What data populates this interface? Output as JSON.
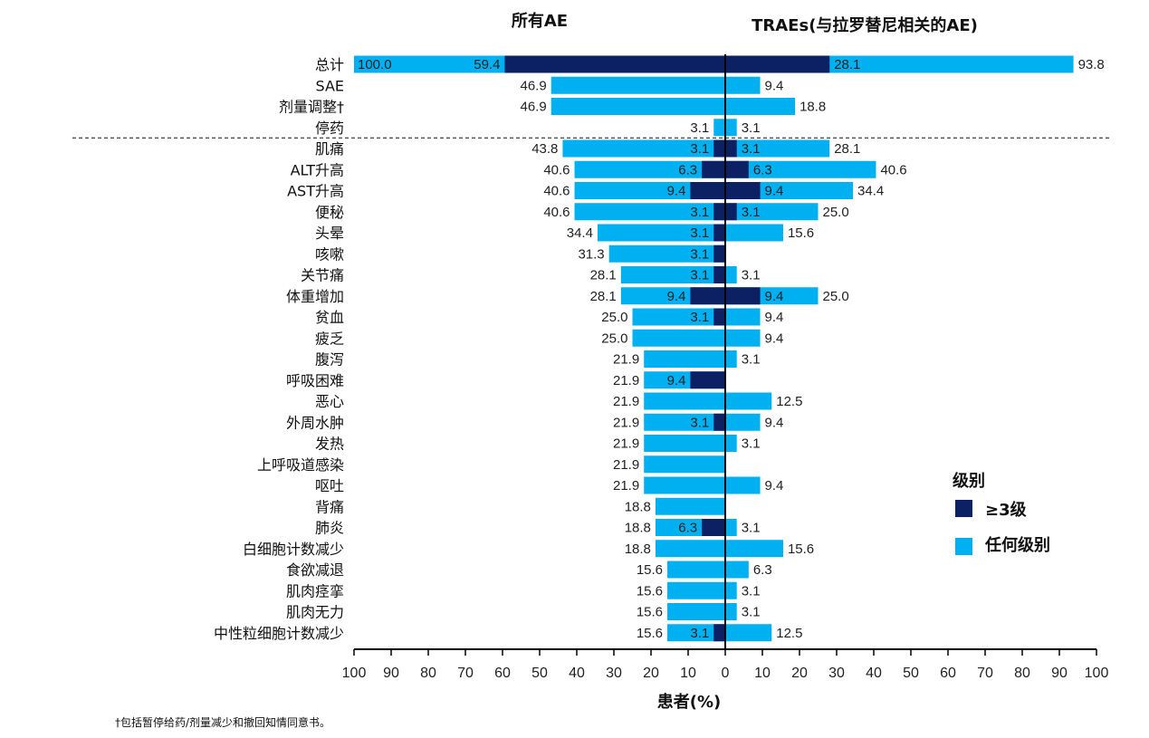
{
  "colors": {
    "any_grade": "#00B0F0",
    "grade3plus": "#0B2163",
    "axis": "#000000",
    "divider": "#555555"
  },
  "header_left": "所有AE",
  "header_right": "TRAEs(与拉罗替尼相关的AE)",
  "xlabel": "患者(%)",
  "footnote": "†包括暂停给药/剂量减少和撤回知情同意书。",
  "legend": {
    "title": "级别",
    "items": [
      {
        "label": "≥3级",
        "key": "grade3plus"
      },
      {
        "label": "任何级别",
        "key": "any_grade"
      }
    ]
  },
  "chart_data": {
    "type": "bar",
    "orientation": "horizontal-butterfly",
    "xlim": [
      -100,
      100
    ],
    "tick_labels": [
      "100",
      "90",
      "80",
      "70",
      "60",
      "50",
      "40",
      "30",
      "20",
      "10",
      "0",
      "10",
      "20",
      "30",
      "40",
      "50",
      "60",
      "70",
      "80",
      "90",
      "100"
    ],
    "divider_after_index": 3,
    "categories": [
      "总计",
      "SAE",
      "剂量调整†",
      "停药",
      "肌痛",
      "ALT升高",
      "AST升高",
      "便秘",
      "头晕",
      "咳嗽",
      "关节痛",
      "体重增加",
      "贫血",
      "疲乏",
      "腹泻",
      "呼吸困难",
      "恶心",
      "外周水肿",
      "发热",
      "上呼吸道感染",
      "呕吐",
      "背痛",
      "肺炎",
      "白细胞计数减少",
      "食欲减退",
      "肌肉痉挛",
      "肌肉无力",
      "中性粒细胞计数减少"
    ],
    "series": [
      {
        "name": "所有AE 任何级别",
        "side": "left",
        "key": "any_grade",
        "values": [
          100.0,
          46.9,
          46.9,
          3.1,
          43.8,
          40.6,
          40.6,
          40.6,
          34.4,
          31.3,
          28.1,
          28.1,
          25.0,
          25.0,
          21.9,
          21.9,
          21.9,
          21.9,
          21.9,
          21.9,
          21.9,
          18.8,
          18.8,
          18.8,
          15.6,
          15.6,
          15.6,
          15.6
        ],
        "labels": [
          "100.0",
          "46.9",
          "46.9",
          "3.1",
          "43.8",
          "40.6",
          "40.6",
          "40.6",
          "34.4",
          "31.3",
          "28.1",
          "28.1",
          "25.0",
          "25.0",
          "21.9",
          "21.9",
          "21.9",
          "21.9",
          "21.9",
          "21.9",
          "21.9",
          "18.8",
          "18.8",
          "18.8",
          "15.6",
          "15.6",
          "15.6",
          "15.6"
        ]
      },
      {
        "name": "所有AE ≥3级",
        "side": "left",
        "key": "grade3plus",
        "values": [
          59.4,
          0,
          0,
          0,
          3.1,
          6.3,
          9.4,
          3.1,
          3.1,
          3.1,
          3.1,
          9.4,
          3.1,
          0,
          0,
          9.4,
          0,
          3.1,
          0,
          0,
          0,
          0,
          6.3,
          0,
          0,
          0,
          0,
          3.1
        ],
        "labels": [
          "59.4",
          "",
          "",
          "",
          "3.1",
          "6.3",
          "9.4",
          "3.1",
          "3.1",
          "3.1",
          "3.1",
          "9.4",
          "3.1",
          "",
          "",
          "9.4",
          "",
          "3.1",
          "",
          "",
          "",
          "",
          "6.3",
          "",
          "",
          "",
          "",
          "3.1"
        ]
      },
      {
        "name": "TRAEs 任何级别",
        "side": "right",
        "key": "any_grade",
        "values": [
          93.8,
          9.4,
          18.8,
          3.1,
          28.1,
          40.6,
          34.4,
          25.0,
          15.6,
          0,
          3.1,
          25.0,
          9.4,
          9.4,
          3.1,
          0,
          12.5,
          9.4,
          3.1,
          0,
          9.4,
          0,
          3.1,
          15.6,
          6.3,
          3.1,
          3.1,
          12.5
        ],
        "labels": [
          "93.8",
          "9.4",
          "18.8",
          "3.1",
          "28.1",
          "40.6",
          "34.4",
          "25.0",
          "15.6",
          "",
          "3.1",
          "25.0",
          "9.4",
          "9.4",
          "3.1",
          "",
          "12.5",
          "9.4",
          "3.1",
          "",
          "9.4",
          "",
          "3.1",
          "15.6",
          "6.3",
          "3.1",
          "3.1",
          "12.5"
        ]
      },
      {
        "name": "TRAEs ≥3级",
        "side": "right",
        "key": "grade3plus",
        "values": [
          28.1,
          0,
          0,
          0,
          3.1,
          6.3,
          9.4,
          3.1,
          0,
          0,
          0,
          9.4,
          0,
          0,
          0,
          0,
          0,
          0,
          0,
          0,
          0,
          0,
          0,
          0,
          0,
          0,
          0,
          0
        ],
        "labels": [
          "28.1",
          "",
          "",
          "",
          "3.1",
          "6.3",
          "9.4",
          "3.1",
          "",
          "",
          "",
          "9.4",
          "",
          "",
          "",
          "",
          "",
          "",
          "",
          "",
          "",
          "",
          "",
          "",
          "",
          "",
          "",
          ""
        ]
      }
    ]
  }
}
